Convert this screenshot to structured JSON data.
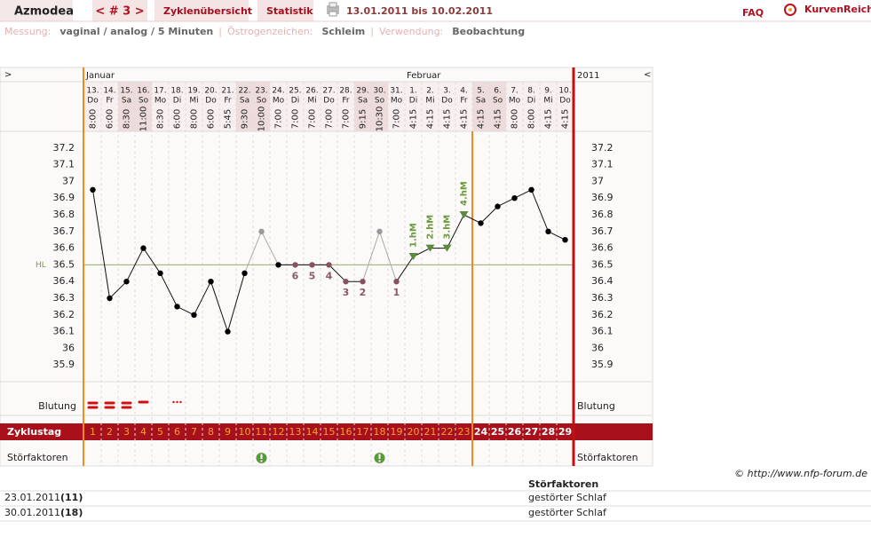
{
  "header": {
    "title": "Azmodea",
    "cycle": "< # 3 >",
    "tabs": [
      "Zyklenübersicht",
      "Statistik"
    ],
    "range": "13.01.2011 bis 10.02.2011",
    "faq": "FAQ",
    "brand": "KurvenReich"
  },
  "info": {
    "items": [
      {
        "label": "Messung:",
        "value": "vaginal / analog / 5 Minuten"
      },
      {
        "label": "Östrogenzeichen:",
        "value": "Schleim"
      },
      {
        "label": "Verwendung:",
        "value": "Beobachtung"
      }
    ],
    "separator": "|"
  },
  "chart_data": {
    "type": "line",
    "nav_left": ">",
    "nav_right": "<",
    "year": "2011",
    "months": [
      "Januar",
      null,
      null,
      null,
      null,
      null,
      null,
      null,
      null,
      null,
      null,
      null,
      null,
      null,
      null,
      null,
      null,
      null,
      null,
      "Februar",
      null,
      null,
      null,
      null,
      null,
      null,
      null,
      null,
      null
    ],
    "categories": [
      "13.",
      "14.",
      "15.",
      "16.",
      "17.",
      "18.",
      "19.",
      "20.",
      "21.",
      "22.",
      "23.",
      "24.",
      "25.",
      "26.",
      "27.",
      "28.",
      "29.",
      "30.",
      "31.",
      "1.",
      "2.",
      "3.",
      "4.",
      "5.",
      "6.",
      "7.",
      "8.",
      "9.",
      "10."
    ],
    "weekdays": [
      "Do",
      "Fr",
      "Sa",
      "So",
      "Mo",
      "Di",
      "Mi",
      "Do",
      "Fr",
      "Sa",
      "So",
      "Mo",
      "Di",
      "Mi",
      "Do",
      "Fr",
      "Sa",
      "So",
      "Mo",
      "Di",
      "Mi",
      "Do",
      "Fr",
      "Sa",
      "So",
      "Mo",
      "Di",
      "Mi",
      "Do"
    ],
    "weekend": [
      false,
      false,
      true,
      true,
      false,
      false,
      false,
      false,
      false,
      true,
      true,
      false,
      false,
      false,
      false,
      false,
      true,
      true,
      false,
      false,
      false,
      false,
      false,
      true,
      true,
      false,
      false,
      false,
      false
    ],
    "times": [
      "8:00",
      "6:00",
      "8:30",
      "11:00",
      "8:30",
      "6:00",
      "8:00",
      "6:00",
      "5:45",
      "9:30",
      "10:00",
      "7:00",
      "7:00",
      "7:00",
      "7:00",
      "7:00",
      "9:15",
      "10:30",
      "7:00",
      "4:15",
      "4:15",
      "4:15",
      "4:15",
      "4:15",
      "4:15",
      "8:00",
      "8:00",
      "4:15",
      "4:15"
    ],
    "values": [
      36.95,
      36.3,
      36.4,
      36.6,
      36.45,
      36.25,
      36.2,
      36.4,
      36.1,
      36.45,
      36.7,
      36.5,
      36.5,
      36.5,
      36.5,
      36.4,
      36.4,
      36.7,
      36.4,
      36.55,
      36.6,
      36.6,
      36.8,
      36.75,
      36.85,
      36.9,
      36.95,
      36.7,
      36.65
    ],
    "excluded": [
      false,
      false,
      false,
      false,
      false,
      false,
      false,
      false,
      false,
      false,
      true,
      false,
      false,
      false,
      false,
      false,
      false,
      true,
      false,
      false,
      false,
      false,
      false,
      false,
      false,
      false,
      false,
      false,
      false
    ],
    "lower_counts": [
      null,
      null,
      null,
      null,
      null,
      null,
      null,
      null,
      null,
      null,
      null,
      null,
      6,
      5,
      4,
      3,
      2,
      null,
      1,
      null,
      null,
      null,
      null,
      null,
      null,
      null,
      null,
      null,
      null
    ],
    "higher_labels": [
      null,
      null,
      null,
      null,
      null,
      null,
      null,
      null,
      null,
      null,
      null,
      null,
      null,
      null,
      null,
      null,
      null,
      null,
      null,
      "1.hM",
      "2.hM",
      "3.hM",
      "4.hM",
      null,
      null,
      null,
      null,
      null,
      null
    ],
    "hl": {
      "label": "HL",
      "value": 36.5
    },
    "ylim": [
      35.8,
      37.3
    ],
    "yticks": [
      35.9,
      36,
      36.1,
      36.2,
      36.3,
      36.4,
      36.5,
      36.6,
      36.7,
      36.8,
      36.9,
      37,
      37.1,
      37.2
    ],
    "grid": false,
    "rows": {
      "bleeding": "Blutung",
      "cycle_day": "Zyklustag",
      "disturbances": "Störfaktoren"
    },
    "bleeding": [
      "strong",
      "strong",
      "strong",
      "medium",
      null,
      "spotting",
      null,
      null,
      null,
      null,
      null,
      null,
      null,
      null,
      null,
      null,
      null,
      null,
      null,
      null,
      null,
      null,
      null,
      null,
      null,
      null,
      null,
      null,
      null
    ],
    "cycle_days": [
      1,
      2,
      3,
      4,
      5,
      6,
      7,
      8,
      9,
      10,
      11,
      12,
      13,
      14,
      15,
      16,
      17,
      18,
      19,
      20,
      21,
      22,
      23,
      24,
      25,
      26,
      27,
      28,
      29
    ],
    "infertile_from_day": 24,
    "disturbances": [
      false,
      false,
      false,
      false,
      false,
      false,
      false,
      false,
      false,
      false,
      true,
      false,
      false,
      false,
      false,
      false,
      false,
      true,
      false,
      false,
      false,
      false,
      false,
      false,
      false,
      false,
      false,
      false,
      false
    ]
  },
  "copyright": "© http://www.nfp-forum.de",
  "table": {
    "header": "Störfaktoren",
    "rows": [
      [
        "23.01.2011",
        "(11)",
        "gestörter Schlaf"
      ],
      [
        "30.01.2011",
        "(18)",
        "gestörter Schlaf"
      ]
    ]
  }
}
